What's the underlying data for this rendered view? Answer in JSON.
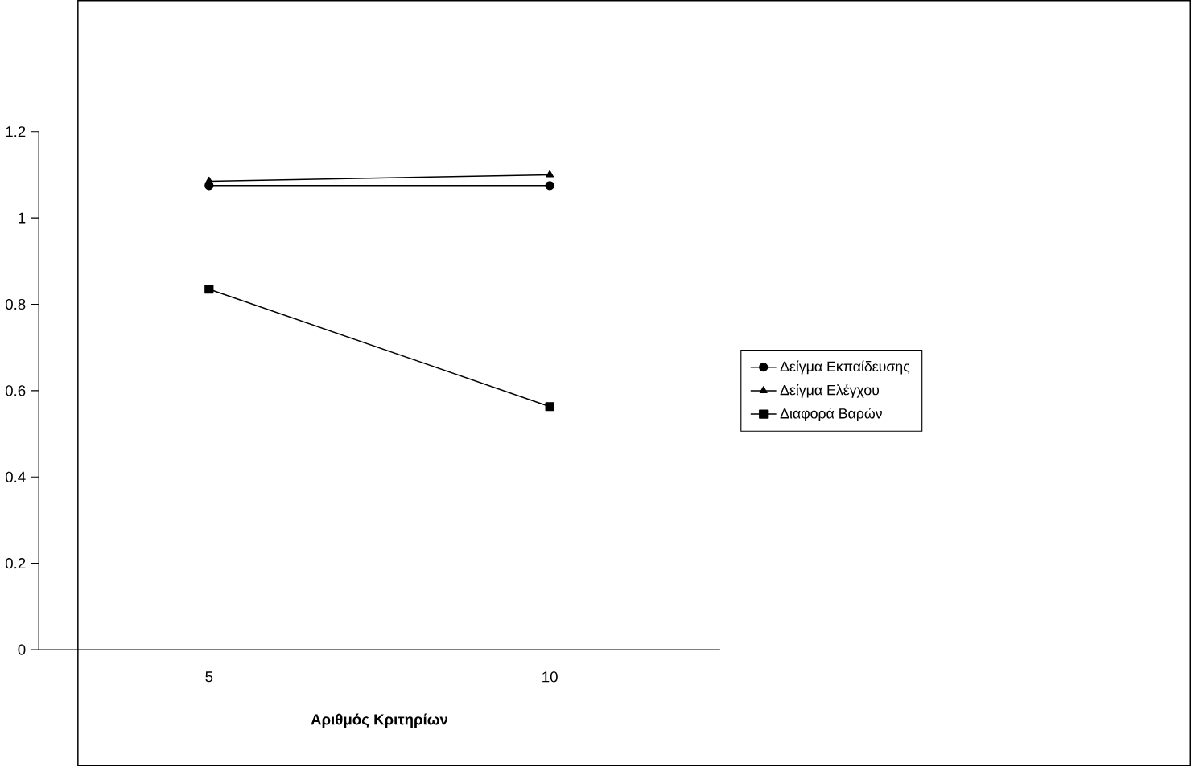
{
  "chart_data": {
    "type": "line",
    "xlabel": "Αριθμός Κριτηρίων",
    "categories": [
      "5",
      "10"
    ],
    "series": [
      {
        "name": "Δείγμα Εκπαίδευσης",
        "color": "#000000",
        "marker": "circle",
        "values": [
          1.075,
          1.075
        ]
      },
      {
        "name": "Δείγμα Ελέγχου",
        "color": "#000000",
        "marker": "triangle",
        "values": [
          1.085,
          1.1
        ]
      },
      {
        "name": "Διαφορά Βαρών",
        "color": "#000000",
        "marker": "square",
        "values": [
          0.835,
          0.563
        ]
      }
    ],
    "ylim": [
      0,
      1.2
    ],
    "yticks": [
      0,
      0.2,
      0.4,
      0.6,
      0.8,
      1,
      1.2
    ],
    "grid": false,
    "legend": "right",
    "line_style": "solid"
  }
}
